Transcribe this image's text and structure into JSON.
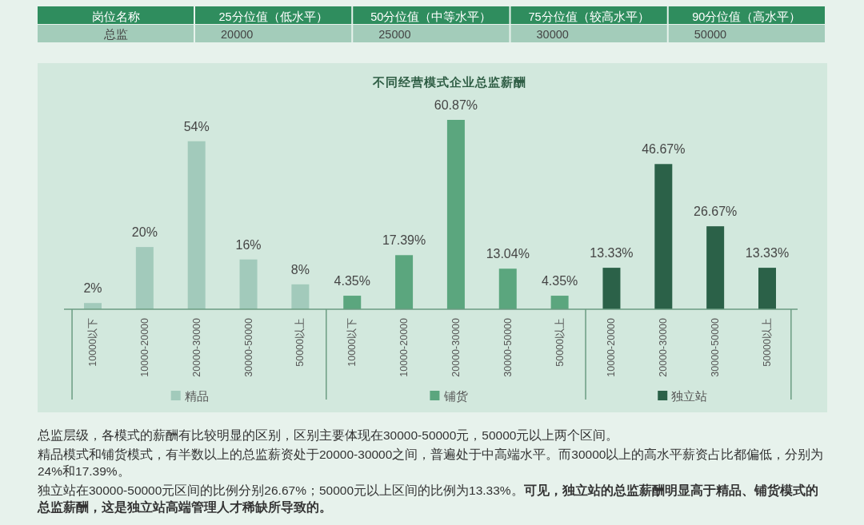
{
  "chart_data": [
    {
      "type": "other",
      "ylabel": "岗位名称",
      "categories": [
        "25分位值（低水平）",
        "50分位值（中等水平）",
        "75分位值（较高水平）",
        "90分位值（高水平）"
      ],
      "series": [
        {
          "name": "总监",
          "values": [
            20000,
            25000,
            30000,
            50000
          ]
        }
      ],
      "data_labels": true
    },
    {
      "type": "bar",
      "title": "不同经营模式企业总监薪酬",
      "legend": "bottom",
      "categories": [
        "10000以下",
        "10000-20000",
        "20000-30000",
        "30000-50000",
        "50000以上",
        "10000以下",
        "10000-20000",
        "20000-30000",
        "30000-50000",
        "50000以上",
        "10000-20000",
        "20000-30000",
        "30000-50000",
        "50000以上"
      ],
      "series": [
        {
          "name": "精品",
          "color": "#a2cabb",
          "values": [
            2,
            20,
            54,
            16,
            8,
            null,
            null,
            null,
            null,
            null,
            null,
            null,
            null,
            null
          ],
          "value_labels": [
            "2%",
            "20%",
            "54%",
            "16%",
            "8%",
            null,
            null,
            null,
            null,
            null,
            null,
            null,
            null,
            null
          ]
        },
        {
          "name": "铺货",
          "color": "#5ba67e",
          "values": [
            null,
            null,
            null,
            null,
            null,
            4.35,
            17.39,
            60.87,
            13.04,
            4.35,
            null,
            null,
            null,
            null
          ],
          "value_labels": [
            null,
            null,
            null,
            null,
            null,
            "4.35%",
            "17.39%",
            "60.87%",
            "13.04%",
            "4.35%",
            null,
            null,
            null,
            null
          ]
        },
        {
          "name": "独立站",
          "color": "#2b6148",
          "values": [
            null,
            null,
            null,
            null,
            null,
            null,
            null,
            null,
            null,
            null,
            13.33,
            46.67,
            26.67,
            13.33
          ],
          "value_labels": [
            null,
            null,
            null,
            null,
            null,
            null,
            null,
            null,
            null,
            null,
            "13.33%",
            "46.67%",
            "26.67%",
            "13.33%"
          ]
        }
      ],
      "annotations": [
        "总监层级，各模式的薪酬有比较明显的区别，区别主要体现在30000-50000元，50000元以上两个区间。",
        "精品模式和铺货模式，有半数以上的总监薪资处于20000-30000之间，普遍处于中高端水平。而30000以上的高水平薪资占比都偏低，分别为24%和17.39%。",
        "独立站在30000-50000元区间的比例分别26.67%；50000元以上区间的比例为13.33%。**可见，独立站的总监薪酬明显高于精品、铺货模式的总监薪酬，这是独立站高端管理人才稀缺所导致的。**"
      ]
    }
  ]
}
